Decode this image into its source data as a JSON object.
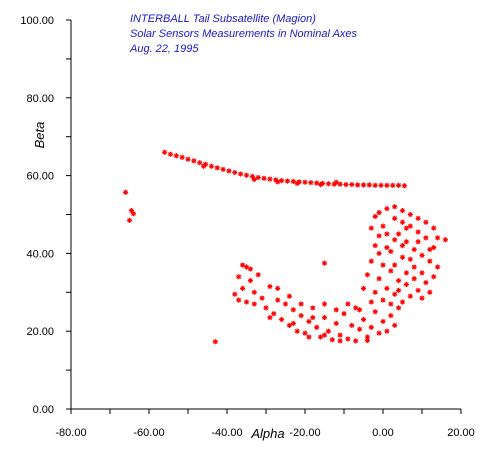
{
  "chart_data": {
    "type": "scatter",
    "title": [
      "INTERBALL Tail Subsatellite (Magion)",
      "Solar Sensors Measurements in Nominal Axes",
      "Aug. 22, 1995"
    ],
    "xlabel": "Alpha",
    "ylabel": "Beta",
    "xlim": [
      -80,
      20
    ],
    "ylim": [
      0,
      100
    ],
    "x_ticks": [
      -80,
      -60,
      -40,
      -20,
      0,
      20
    ],
    "x_tick_labels": [
      "-80.00",
      "-60.00",
      "-40.00",
      "-20.00",
      "0.00",
      "20.00"
    ],
    "y_ticks": [
      0,
      20,
      40,
      60,
      80,
      100
    ],
    "y_tick_labels": [
      "0.00",
      "20.00",
      "40.00",
      "60.00",
      "80.00",
      "100.00"
    ],
    "marker": "*",
    "marker_color": "#ff0000",
    "title_color": "#1a1acc",
    "grid": false,
    "series": [
      {
        "points": [
          [
            -56.0,
            66.0
          ],
          [
            -54.5,
            65.5
          ],
          [
            -53.0,
            65.1
          ],
          [
            -51.5,
            64.7
          ],
          [
            -50.0,
            64.2
          ],
          [
            -48.5,
            63.8
          ],
          [
            -47.0,
            63.3
          ],
          [
            -45.5,
            62.9
          ],
          [
            -44.0,
            62.4
          ],
          [
            -42.5,
            62.0
          ],
          [
            -41.0,
            61.6
          ],
          [
            -39.5,
            61.2
          ],
          [
            -38.0,
            60.8
          ],
          [
            -36.5,
            60.4
          ],
          [
            -35.0,
            60.1
          ],
          [
            -33.5,
            59.8
          ],
          [
            -32.0,
            59.5
          ],
          [
            -30.5,
            59.3
          ],
          [
            -29.0,
            59.1
          ],
          [
            -27.5,
            58.9
          ],
          [
            -26.0,
            58.7
          ],
          [
            -24.5,
            58.6
          ],
          [
            -23.0,
            58.5
          ],
          [
            -21.5,
            58.4
          ],
          [
            -20.0,
            58.3
          ],
          [
            -18.5,
            58.2
          ],
          [
            -17.0,
            58.1
          ],
          [
            -15.5,
            58.0
          ],
          [
            -14.0,
            57.9
          ],
          [
            -12.5,
            57.8
          ],
          [
            -11.0,
            57.8
          ],
          [
            -9.5,
            57.7
          ],
          [
            -8.0,
            57.7
          ],
          [
            -6.5,
            57.6
          ],
          [
            -5.0,
            57.6
          ],
          [
            -3.5,
            57.6
          ],
          [
            -2.0,
            57.5
          ],
          [
            -0.5,
            57.5
          ],
          [
            1.0,
            57.5
          ],
          [
            2.5,
            57.5
          ],
          [
            4.0,
            57.5
          ],
          [
            5.5,
            57.4
          ],
          [
            -33.0,
            59.0
          ],
          [
            -27.0,
            58.4
          ],
          [
            -22.0,
            58.0
          ],
          [
            -16.0,
            57.7
          ],
          [
            -12.0,
            58.3
          ],
          [
            -46.0,
            62.4
          ],
          [
            -66.0,
            55.7
          ],
          [
            -65.0,
            48.5
          ],
          [
            -64.5,
            51.0
          ],
          [
            -64.0,
            50.2
          ],
          [
            -15.0,
            37.5
          ],
          [
            -43.0,
            17.3
          ],
          [
            -37.0,
            34.0
          ],
          [
            -35.0,
            36.5
          ],
          [
            -36.0,
            31.0
          ],
          [
            -38.0,
            29.5
          ],
          [
            -34.0,
            33.0
          ],
          [
            -32.0,
            34.5
          ],
          [
            -33.0,
            30.0
          ],
          [
            -35.0,
            27.5
          ],
          [
            -31.0,
            28.5
          ],
          [
            -29.0,
            31.5
          ],
          [
            -30.0,
            26.0
          ],
          [
            -28.0,
            24.5
          ],
          [
            -27.0,
            28.0
          ],
          [
            -25.0,
            27.0
          ],
          [
            -26.0,
            23.0
          ],
          [
            -24.0,
            21.5
          ],
          [
            -23.0,
            25.5
          ],
          [
            -21.0,
            24.0
          ],
          [
            -22.0,
            20.0
          ],
          [
            -20.0,
            19.5
          ],
          [
            -19.0,
            22.5
          ],
          [
            -18.0,
            26.0
          ],
          [
            -17.0,
            21.0
          ],
          [
            -16.0,
            18.5
          ],
          [
            -15.0,
            23.5
          ],
          [
            -14.0,
            20.0
          ],
          [
            -13.0,
            17.8
          ],
          [
            -12.0,
            22.0
          ],
          [
            -11.0,
            19.0
          ],
          [
            -10.0,
            24.5
          ],
          [
            -9.0,
            18.0
          ],
          [
            -8.0,
            21.5
          ],
          [
            -7.0,
            17.5
          ],
          [
            -6.0,
            20.5
          ],
          [
            -5.0,
            23.0
          ],
          [
            -4.0,
            18.5
          ],
          [
            -3.0,
            21.0
          ],
          [
            -2.0,
            25.0
          ],
          [
            -1.0,
            19.5
          ],
          [
            0.0,
            22.5
          ],
          [
            1.0,
            20.0
          ],
          [
            2.0,
            24.0
          ],
          [
            3.0,
            21.5
          ],
          [
            4.0,
            26.0
          ],
          [
            -36.0,
            37.0
          ],
          [
            -33.0,
            27.0
          ],
          [
            -29.0,
            23.5
          ],
          [
            -27.0,
            31.0
          ],
          [
            -24.0,
            29.0
          ],
          [
            -21.0,
            27.0
          ],
          [
            -18.0,
            23.5
          ],
          [
            -15.0,
            27.0
          ],
          [
            -12.0,
            25.5
          ],
          [
            -9.0,
            27.0
          ],
          [
            -6.0,
            25.5
          ],
          [
            -3.0,
            27.5
          ],
          [
            -7.0,
            26.0
          ],
          [
            -11.0,
            17.5
          ],
          [
            -4.0,
            17.6
          ],
          [
            -15.0,
            19.0
          ],
          [
            -19.0,
            18.5
          ],
          [
            -23.0,
            22.0
          ],
          [
            -34.0,
            36.0
          ],
          [
            -37.0,
            28.0
          ],
          [
            0.0,
            28.0
          ],
          [
            1.0,
            31.0
          ],
          [
            -1.0,
            33.5
          ],
          [
            2.0,
            35.5
          ],
          [
            0.0,
            37.0
          ],
          [
            -1.0,
            40.0
          ],
          [
            1.0,
            41.5
          ],
          [
            -1.0,
            44.5
          ],
          [
            0.0,
            47.0
          ],
          [
            -2.0,
            49.5
          ],
          [
            -1.0,
            50.5
          ],
          [
            1.0,
            51.5
          ],
          [
            3.0,
            52.0
          ],
          [
            5.0,
            51.0
          ],
          [
            7.0,
            50.0
          ],
          [
            9.0,
            49.0
          ],
          [
            11.0,
            48.0
          ],
          [
            13.0,
            46.5
          ],
          [
            14.0,
            44.0
          ],
          [
            16.0,
            43.5
          ],
          [
            13.0,
            41.5
          ],
          [
            11.0,
            44.0
          ],
          [
            9.0,
            45.5
          ],
          [
            7.0,
            47.0
          ],
          [
            5.0,
            48.0
          ],
          [
            3.0,
            49.0
          ],
          [
            4.0,
            45.0
          ],
          [
            6.0,
            43.0
          ],
          [
            8.0,
            41.0
          ],
          [
            10.0,
            39.5
          ],
          [
            12.0,
            38.0
          ],
          [
            14.0,
            36.5
          ],
          [
            13.0,
            34.0
          ],
          [
            11.0,
            32.5
          ],
          [
            9.0,
            30.5
          ],
          [
            7.0,
            29.0
          ],
          [
            5.0,
            27.5
          ],
          [
            3.0,
            29.5
          ],
          [
            4.0,
            33.0
          ],
          [
            6.0,
            35.0
          ],
          [
            8.0,
            36.5
          ],
          [
            10.0,
            35.0
          ],
          [
            12.0,
            41.0
          ],
          [
            2.0,
            40.5
          ],
          [
            3.0,
            37.0
          ],
          [
            5.0,
            39.0
          ],
          [
            7.0,
            38.5
          ],
          [
            9.0,
            43.0
          ],
          [
            -3.0,
            46.5
          ],
          [
            -2.0,
            42.0
          ],
          [
            -3.0,
            38.0
          ],
          [
            -4.0,
            34.5
          ],
          [
            -5.0,
            31.0
          ],
          [
            -2.0,
            30.0
          ],
          [
            2.0,
            27.0
          ],
          [
            4.0,
            30.5
          ],
          [
            6.0,
            32.0
          ],
          [
            8.0,
            33.5
          ],
          [
            10.0,
            28.5
          ],
          [
            12.0,
            30.0
          ],
          [
            1.0,
            45.0
          ],
          [
            3.0,
            43.5
          ],
          [
            5.0,
            42.0
          ],
          [
            6.0,
            46.5
          ]
        ]
      }
    ]
  }
}
